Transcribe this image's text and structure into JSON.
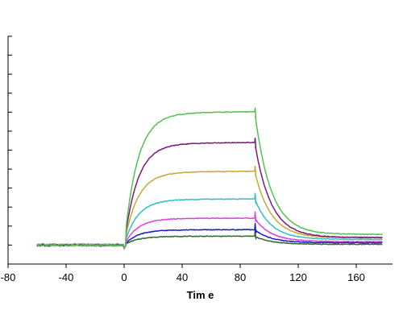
{
  "chart_data": {
    "type": "line",
    "title": "",
    "xlabel": "Tim e",
    "ylabel": "",
    "xlim": [
      -80,
      185
    ],
    "ylim": [
      -5,
      55
    ],
    "x_ticks": [
      -80,
      -40,
      0,
      40,
      80,
      120,
      160
    ],
    "x_tick_labels": [
      "-80",
      "-40",
      "0",
      "40",
      "80",
      "120",
      "160"
    ],
    "y_ticks": [
      0,
      5,
      10,
      15,
      20,
      25,
      30,
      35,
      40,
      45,
      50,
      55
    ],
    "grid": false,
    "legend": "none",
    "association_start": 0,
    "dissociation_start": 90,
    "series": [
      {
        "color": "#2e6b2e",
        "plateau": 2.3,
        "end": 0.2
      },
      {
        "color": "#1a1acc",
        "plateau": 4.0,
        "end": 0.6
      },
      {
        "color": "#e040e0",
        "plateau": 7.0,
        "end": 0.9
      },
      {
        "color": "#2fc0c8",
        "plateau": 12.0,
        "end": 1.5
      },
      {
        "color": "#c8a838",
        "plateau": 19.2,
        "end": 1.9
      },
      {
        "color": "#7a1a7a",
        "plateau": 26.7,
        "end": 2.0
      },
      {
        "color": "#55c055",
        "plateau": 34.7,
        "end": 2.8
      }
    ]
  }
}
